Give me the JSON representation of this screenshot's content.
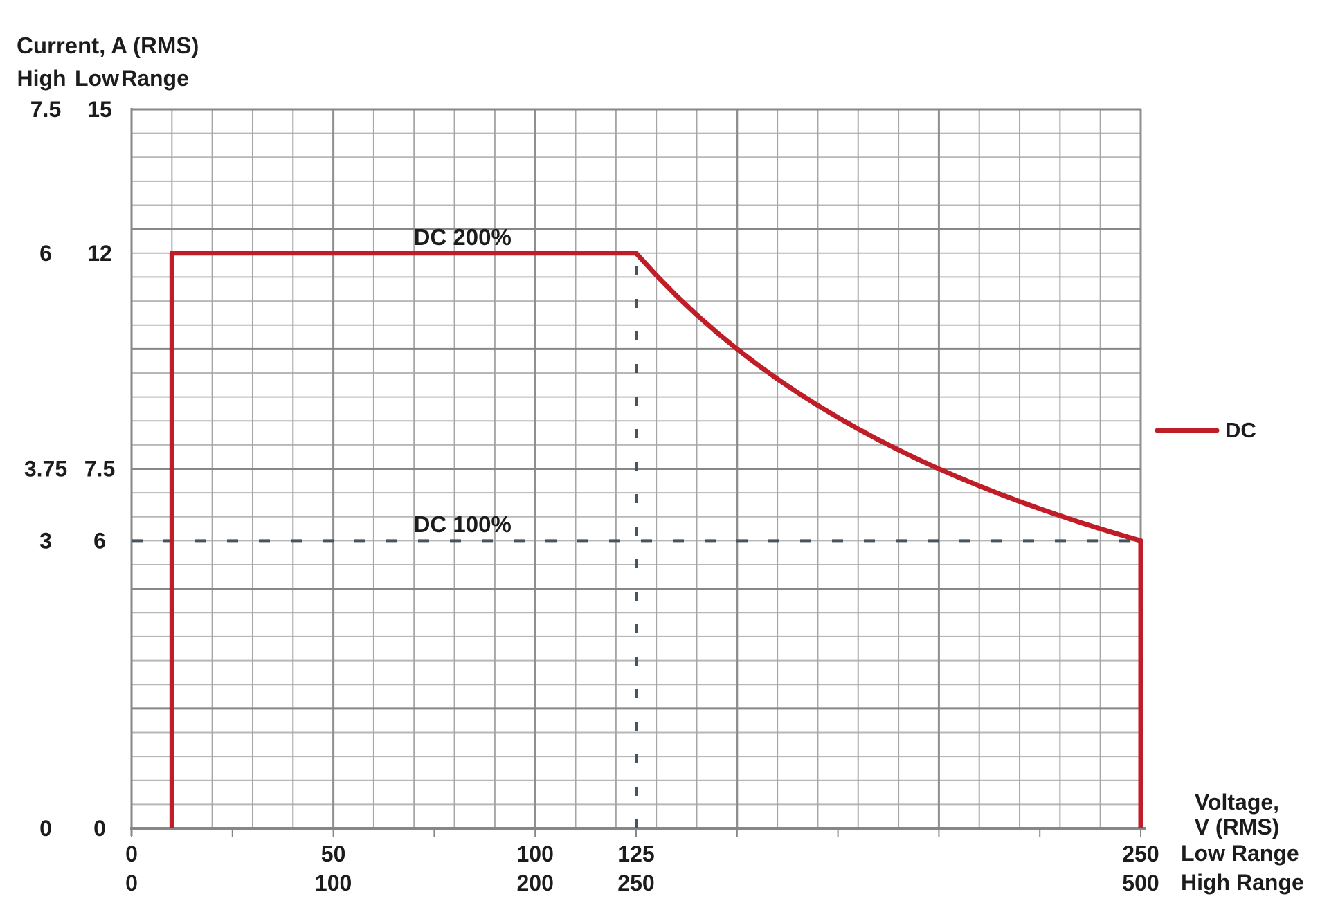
{
  "chart_data": {
    "type": "line",
    "title": "",
    "y_axis": {
      "title": "Current, A (RMS)",
      "col_headers": [
        "High",
        "Low",
        "Range"
      ],
      "range_low": [
        0,
        15
      ],
      "ticks": [
        {
          "value": 15,
          "high": "7.5",
          "low": "15"
        },
        {
          "value": 12,
          "high": "6",
          "low": "12"
        },
        {
          "value": 7.5,
          "high": "3.75",
          "low": "7.5"
        },
        {
          "value": 6,
          "high": "3",
          "low": "6"
        },
        {
          "value": 0,
          "high": "0",
          "low": "0"
        }
      ]
    },
    "x_axis": {
      "title_lines": [
        "Voltage,",
        "V (RMS)"
      ],
      "row_labels": [
        "Low Range",
        "High Range"
      ],
      "range_low": [
        0,
        250
      ],
      "ticks": [
        {
          "value": 0,
          "low": "0",
          "high": "0"
        },
        {
          "value": 50,
          "low": "50",
          "high": "100"
        },
        {
          "value": 100,
          "low": "100",
          "high": "200"
        },
        {
          "value": 125,
          "low": "125",
          "high": "250"
        },
        {
          "value": 250,
          "low": "250",
          "high": "500"
        }
      ]
    },
    "grid": {
      "minor_x": 10,
      "major_x": 50,
      "minor_y": 0.5,
      "major_y": 2.5,
      "tick_step_x": 25
    },
    "series": [
      {
        "name": "DC",
        "color": "#bf1e28",
        "points": [
          [
            10,
            0
          ],
          [
            10,
            12
          ],
          [
            125,
            12
          ],
          [
            130,
            11.538
          ],
          [
            135,
            11.111
          ],
          [
            140,
            10.714
          ],
          [
            145,
            10.345
          ],
          [
            150,
            10
          ],
          [
            155,
            9.677
          ],
          [
            160,
            9.375
          ],
          [
            165,
            9.091
          ],
          [
            170,
            8.824
          ],
          [
            175,
            8.571
          ],
          [
            180,
            8.333
          ],
          [
            185,
            8.108
          ],
          [
            190,
            7.895
          ],
          [
            195,
            7.692
          ],
          [
            200,
            7.5
          ],
          [
            205,
            7.317
          ],
          [
            210,
            7.143
          ],
          [
            215,
            6.977
          ],
          [
            220,
            6.818
          ],
          [
            225,
            6.667
          ],
          [
            230,
            6.522
          ],
          [
            235,
            6.383
          ],
          [
            240,
            6.25
          ],
          [
            245,
            6.122
          ],
          [
            250,
            6
          ],
          [
            250,
            0
          ]
        ]
      }
    ],
    "guides": [
      {
        "orientation": "vertical",
        "at": 125,
        "from": 0,
        "to": 12
      },
      {
        "orientation": "horizontal",
        "at": 6,
        "from": 0,
        "to": 250
      }
    ],
    "annotations": [
      {
        "text": "DC 200%",
        "v": 82,
        "a": 12
      },
      {
        "text": "DC 100%",
        "v": 82,
        "a": 6
      }
    ],
    "legend": {
      "label": "DC",
      "position": "right"
    }
  },
  "colors": {
    "series_red": "#bf1e28",
    "guide_dash": "#46545e",
    "grid_minor": "#b7b7b7",
    "grid_vertical": "#a6a6a6",
    "grid_vertical_major": "#8f8f8f",
    "grid_major": "#878787",
    "axis": "#878787",
    "text": "#1c1c1c",
    "background": "#ffffff"
  }
}
